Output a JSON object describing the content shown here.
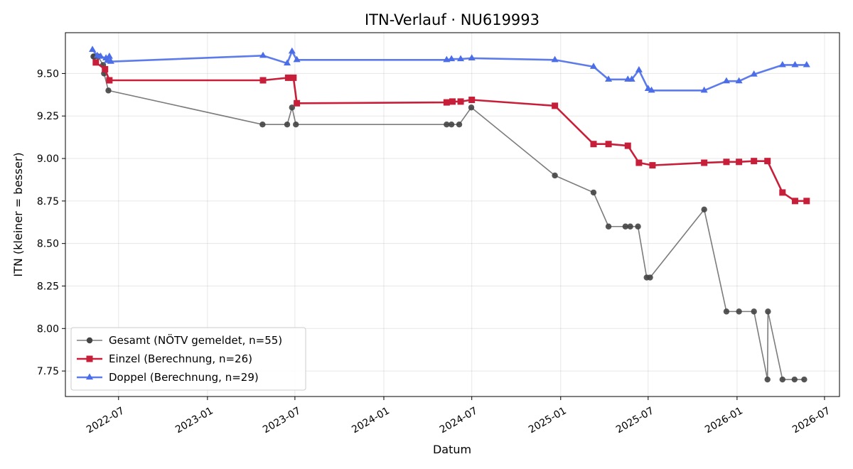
{
  "chart_data": {
    "type": "line",
    "title": "ITN-Verlauf · NU619993",
    "xlabel": "Datum",
    "ylabel": "ITN  (kleiner = besser)",
    "xlim": [
      "2022-03-13",
      "2026-08-01"
    ],
    "ylim": [
      7.6,
      9.74
    ],
    "x_ticks": [
      "2022-07-01",
      "2023-01-01",
      "2023-07-01",
      "2024-01-01",
      "2024-07-01",
      "2025-01-01",
      "2025-07-01",
      "2026-01-01",
      "2026-07-01"
    ],
    "x_tick_labels": [
      "2022-07",
      "2023-01",
      "2023-07",
      "2024-01",
      "2024-07",
      "2025-01",
      "2025-07",
      "2026-01",
      "2026-07"
    ],
    "y_ticks": [
      7.75,
      8.0,
      8.25,
      8.5,
      8.75,
      9.0,
      9.25,
      9.5
    ],
    "y_tick_labels": [
      "7.75",
      "8.00",
      "8.25",
      "8.50",
      "8.75",
      "9.00",
      "9.25",
      "9.50"
    ],
    "grid": true,
    "legend_position": "lower-left",
    "series": [
      {
        "name": "Gesamt (NÖTV gemeldet, n=55)",
        "color": "#444444",
        "marker": "circle",
        "points": [
          [
            "2022-05-10",
            9.6
          ],
          [
            "2022-05-12",
            9.6
          ],
          [
            "2022-05-20",
            9.6
          ],
          [
            "2022-05-30",
            9.55
          ],
          [
            "2022-06-01",
            9.5
          ],
          [
            "2022-06-10",
            9.4
          ],
          [
            "2023-04-25",
            9.2
          ],
          [
            "2023-06-15",
            9.2
          ],
          [
            "2023-06-25",
            9.3
          ],
          [
            "2023-07-03",
            9.2
          ],
          [
            "2024-05-10",
            9.2
          ],
          [
            "2024-05-20",
            9.2
          ],
          [
            "2024-06-05",
            9.2
          ],
          [
            "2024-06-30",
            9.3
          ],
          [
            "2024-12-20",
            8.9
          ],
          [
            "2025-03-10",
            8.8
          ],
          [
            "2025-04-10",
            8.6
          ],
          [
            "2025-05-15",
            8.6
          ],
          [
            "2025-05-25",
            8.6
          ],
          [
            "2025-06-10",
            8.6
          ],
          [
            "2025-06-28",
            8.3
          ],
          [
            "2025-07-05",
            8.3
          ],
          [
            "2025-10-25",
            8.7
          ],
          [
            "2025-12-10",
            8.1
          ],
          [
            "2026-01-05",
            8.1
          ],
          [
            "2026-02-05",
            8.1
          ],
          [
            "2026-03-05",
            7.7
          ],
          [
            "2026-03-06",
            8.1
          ],
          [
            "2026-04-05",
            7.7
          ],
          [
            "2026-04-30",
            7.7
          ],
          [
            "2026-05-20",
            7.7
          ]
        ]
      },
      {
        "name": "Einzel (Berechnung, n=26)",
        "color": "#c71f3a",
        "marker": "square",
        "points": [
          [
            "2022-05-15",
            9.565
          ],
          [
            "2022-06-03",
            9.525
          ],
          [
            "2022-06-12",
            9.46
          ],
          [
            "2023-04-26",
            9.46
          ],
          [
            "2023-06-17",
            9.475
          ],
          [
            "2023-06-28",
            9.475
          ],
          [
            "2023-07-05",
            9.325
          ],
          [
            "2024-05-10",
            9.33
          ],
          [
            "2024-05-22",
            9.335
          ],
          [
            "2024-06-08",
            9.335
          ],
          [
            "2024-07-01",
            9.345
          ],
          [
            "2024-12-20",
            9.31
          ],
          [
            "2025-03-10",
            9.085
          ],
          [
            "2025-04-10",
            9.085
          ],
          [
            "2025-05-20",
            9.075
          ],
          [
            "2025-06-12",
            8.975
          ],
          [
            "2025-07-10",
            8.96
          ],
          [
            "2025-10-25",
            8.975
          ],
          [
            "2025-12-10",
            8.98
          ],
          [
            "2026-01-05",
            8.98
          ],
          [
            "2026-02-05",
            8.985
          ],
          [
            "2026-03-05",
            8.985
          ],
          [
            "2026-04-05",
            8.8
          ],
          [
            "2026-05-01",
            8.75
          ],
          [
            "2026-05-25",
            8.75
          ]
        ]
      },
      {
        "name": "Doppel (Berechnung, n=29)",
        "color": "#4b6ee8",
        "marker": "triangle",
        "points": [
          [
            "2022-05-08",
            9.64
          ],
          [
            "2022-05-18",
            9.605
          ],
          [
            "2022-05-25",
            9.6
          ],
          [
            "2022-06-05",
            9.59
          ],
          [
            "2022-06-08",
            9.575
          ],
          [
            "2022-06-12",
            9.6
          ],
          [
            "2022-06-15",
            9.57
          ],
          [
            "2023-04-26",
            9.605
          ],
          [
            "2023-06-15",
            9.56
          ],
          [
            "2023-06-25",
            9.63
          ],
          [
            "2023-07-05",
            9.58
          ],
          [
            "2024-05-10",
            9.58
          ],
          [
            "2024-05-20",
            9.585
          ],
          [
            "2024-06-08",
            9.585
          ],
          [
            "2024-07-01",
            9.59
          ],
          [
            "2024-12-20",
            9.58
          ],
          [
            "2025-03-10",
            9.54
          ],
          [
            "2025-04-10",
            9.465
          ],
          [
            "2025-05-20",
            9.465
          ],
          [
            "2025-05-28",
            9.465
          ],
          [
            "2025-06-12",
            9.52
          ],
          [
            "2025-07-01",
            9.41
          ],
          [
            "2025-07-08",
            9.4
          ],
          [
            "2025-10-25",
            9.4
          ],
          [
            "2025-12-10",
            9.455
          ],
          [
            "2026-01-05",
            9.455
          ],
          [
            "2026-02-05",
            9.495
          ],
          [
            "2026-04-05",
            9.55
          ],
          [
            "2026-05-01",
            9.55
          ],
          [
            "2026-05-25",
            9.55
          ]
        ]
      }
    ]
  }
}
